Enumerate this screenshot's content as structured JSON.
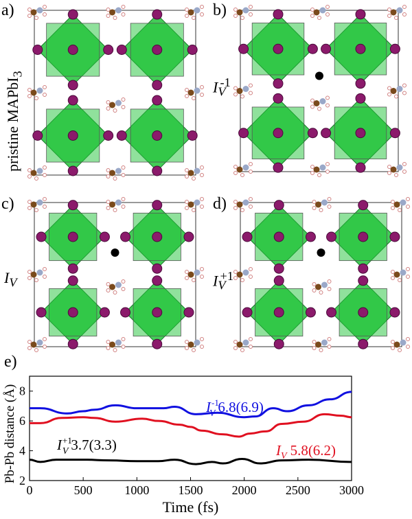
{
  "panels": [
    {
      "label": "a)",
      "state": "pristine MAPbI",
      "state_sub": "3",
      "vacancy": false
    },
    {
      "label": "b)",
      "state": "I",
      "state_sub": "V",
      "state_sup": "-1",
      "vacancy": true
    },
    {
      "label": "c)",
      "state": "I",
      "state_sub": "V",
      "state_sup": "",
      "vacancy": true
    },
    {
      "label": "d)",
      "state": "I",
      "state_sub": "V",
      "state_sup": "+1",
      "vacancy": true
    }
  ],
  "colors": {
    "octahedron": "#22c33a",
    "iodine": "#8b1a6b",
    "carbon": "#7a4a1c",
    "nitrogen": "#9aa8c8",
    "hydrogen": "#f0c8c8",
    "vacancy": "#000000"
  },
  "chart_panel_label": "e)",
  "chart_data": {
    "type": "line",
    "xlabel": "Time (fs)",
    "ylabel": "Pb-Pb distance (Å)",
    "xlim": [
      0,
      3000
    ],
    "ylim": [
      2,
      9
    ],
    "xticks": [
      "0",
      "500",
      "1000",
      "1500",
      "2000",
      "2500",
      "3000"
    ],
    "yticks": [
      "2",
      "4",
      "6",
      "8"
    ],
    "series": [
      {
        "name": "I_V^-1",
        "color": "#1010e0",
        "annotation": {
          "base": "I",
          "sub": "V",
          "sup": "-1",
          "text": "6.8(6.9)"
        },
        "x": [
          0,
          100,
          350,
          500,
          600,
          800,
          1000,
          1250,
          1350,
          1550,
          1750,
          2000,
          2100,
          2270,
          2400,
          2600,
          2800,
          3000
        ],
        "y": [
          6.85,
          6.85,
          6.5,
          6.65,
          6.75,
          7.05,
          6.85,
          6.85,
          6.95,
          6.45,
          6.55,
          6.25,
          6.3,
          6.85,
          6.65,
          7.05,
          7.45,
          7.95
        ]
      },
      {
        "name": "I_V",
        "color": "#e01020",
        "annotation": {
          "base": "I",
          "sub": "V",
          "sup": "",
          "text": "5.8(6.2)"
        },
        "x": [
          0,
          100,
          300,
          500,
          600,
          800,
          1050,
          1200,
          1400,
          1500,
          1600,
          1800,
          1950,
          2050,
          2200,
          2350,
          2550,
          2750,
          2900,
          3000
        ],
        "y": [
          5.85,
          5.85,
          6.2,
          6.25,
          6.2,
          5.95,
          6.15,
          6.0,
          5.75,
          5.6,
          5.35,
          5.1,
          4.95,
          5.15,
          5.3,
          5.8,
          5.95,
          6.45,
          6.35,
          6.25
        ]
      },
      {
        "name": "I_V^+1",
        "color": "#000000",
        "annotation": {
          "base": "I",
          "sub": "V",
          "sup": "+1",
          "text": "3.7(3.3)"
        },
        "x": [
          0,
          100,
          250,
          500,
          750,
          1000,
          1200,
          1350,
          1550,
          1700,
          1800,
          1980,
          2150,
          2350,
          2600,
          3000
        ],
        "y": [
          3.4,
          3.25,
          3.4,
          3.4,
          3.35,
          3.3,
          3.3,
          3.4,
          3.1,
          3.25,
          3.15,
          3.45,
          3.15,
          3.35,
          3.4,
          3.25
        ]
      }
    ]
  }
}
